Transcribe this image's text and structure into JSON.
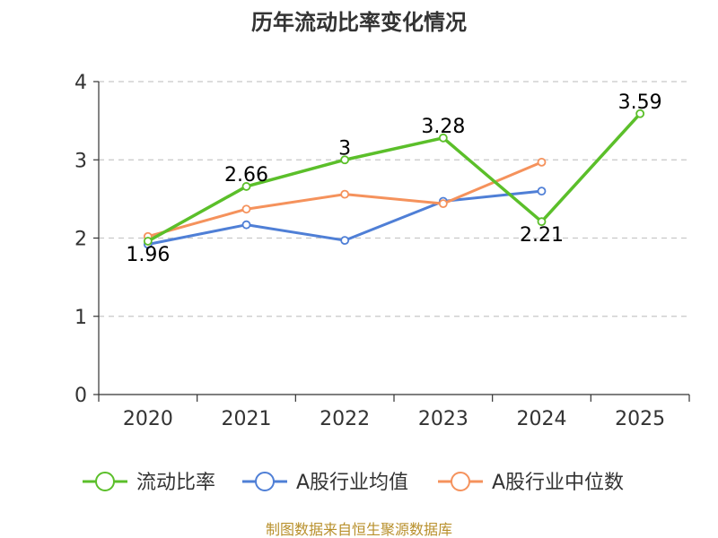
{
  "chart_data": {
    "type": "line",
    "title": "历年流动比率变化情况",
    "categories": [
      "2020",
      "2021",
      "2022",
      "2023",
      "2024",
      "2025"
    ],
    "ylim": [
      0,
      4
    ],
    "yticks": [
      0,
      1,
      2,
      3,
      4
    ],
    "grid": true,
    "legend_position": "bottom",
    "series": [
      {
        "name": "流动比率",
        "color": "#5bbf2a",
        "values": [
          1.96,
          2.66,
          3,
          3.28,
          2.21,
          3.59
        ],
        "labels": [
          "1.96",
          "2.66",
          "3",
          "3.28",
          "2.21",
          "3.59"
        ]
      },
      {
        "name": "A股行业均值",
        "color": "#4f7fd6",
        "values": [
          1.92,
          2.17,
          1.97,
          2.47,
          2.6,
          null
        ]
      },
      {
        "name": "A股行业中位数",
        "color": "#f5925c",
        "values": [
          2.02,
          2.37,
          2.56,
          2.44,
          2.97,
          null
        ]
      }
    ],
    "source": "制图数据来自恒生聚源数据库"
  }
}
